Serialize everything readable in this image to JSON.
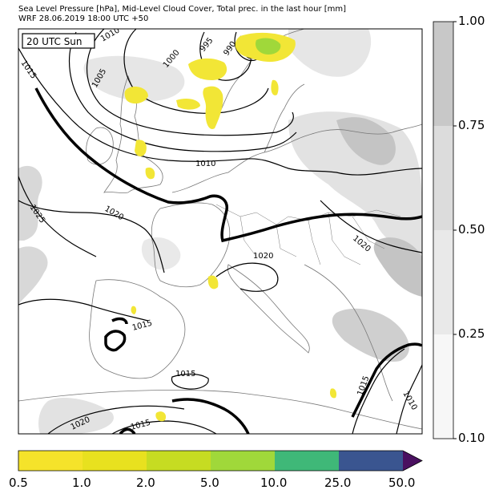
{
  "header": {
    "line1": "Sea Level Pressure [hPa], Mid-Level Cloud Cover, Total prec. in the last hour [mm]",
    "line2": "WRF 28.06.2019 18:00 UTC +50"
  },
  "map": {
    "time_label": "20 UTC Sun",
    "isobar_labels": [
      "1010",
      "995",
      "990",
      "1000",
      "1005",
      "1015",
      "1010",
      "1025",
      "1020",
      "1020",
      "1020",
      "1015",
      "1015",
      "1020",
      "1015",
      "1015",
      "1010"
    ],
    "colors": {
      "land_outline": "#777777",
      "isobar": "#000000",
      "cloud_light": "#e6e6e6",
      "cloud_mid": "#cfcfcf",
      "cloud_dark": "#b0b0b0",
      "precip_low": "#f2e636"
    }
  },
  "cloud_colorbar": {
    "ticks": [
      "1.00",
      "0.75",
      "0.50",
      "0.25",
      "0.10"
    ],
    "colors": [
      "#c8c8c8",
      "#dcdcdc",
      "#e9e9e9",
      "#f7f7f7"
    ]
  },
  "precip_colorbar": {
    "ticks": [
      "0.5",
      "1.0",
      "2.0",
      "5.0",
      "10.0",
      "25.0",
      "50.0"
    ],
    "colors": [
      "#f5e32a",
      "#e8e11f",
      "#c6dc22",
      "#a0d83a",
      "#3fb878",
      "#3a5590",
      "#4a1060"
    ]
  }
}
